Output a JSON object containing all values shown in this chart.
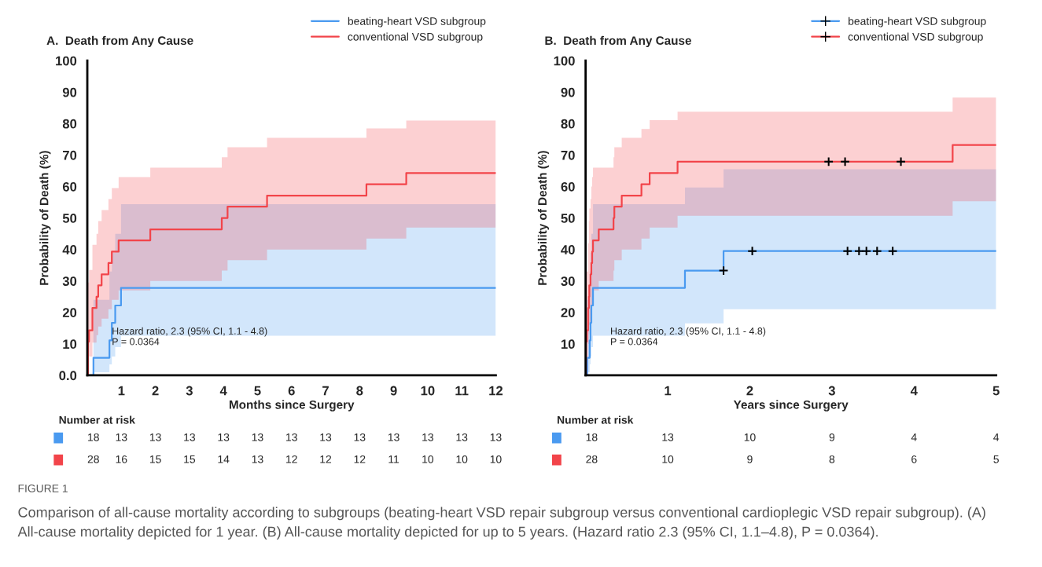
{
  "chart_data": [
    {
      "type": "step",
      "title": "A.  Death from Any Cause",
      "xlabel": "Months since Surgery",
      "ylabel": "Probability of Death (%)",
      "xlim": [
        0,
        12
      ],
      "ylim": [
        0,
        100
      ],
      "xticks": [
        {
          "value": 0,
          "label": null
        },
        1,
        2,
        3,
        4,
        5,
        6,
        7,
        8,
        9,
        10,
        11,
        12
      ],
      "yticks": [
        {
          "value": 0,
          "label": "0.0"
        },
        10,
        20,
        30,
        40,
        50,
        60,
        70,
        80,
        90,
        100
      ],
      "legend": "top right",
      "grid": false,
      "series": [
        {
          "name": "beating-heart VSD subgroup",
          "color": "#4a9af0",
          "x": [
            0,
            0.18,
            0.65,
            0.72,
            0.82,
            0.99,
            12
          ],
          "values": [
            0,
            5.6,
            11.1,
            16.7,
            22.2,
            27.8,
            27.8
          ],
          "lower": [
            0,
            1,
            3.5,
            6,
            9,
            12.6,
            12.6
          ],
          "upper": [
            0,
            24,
            33,
            39,
            45,
            54.4,
            54.4
          ]
        },
        {
          "name": "conventional VSD subgroup",
          "color": "#f2444a",
          "x": [
            0,
            0.02,
            0.05,
            0.15,
            0.27,
            0.32,
            0.42,
            0.62,
            0.72,
            0.92,
            1.85,
            3.95,
            4.12,
            5.28,
            8.2,
            9.37,
            12
          ],
          "values": [
            0,
            10.7,
            14.3,
            21.4,
            25,
            28.6,
            32.1,
            35.7,
            39.3,
            42.9,
            46.4,
            50,
            53.6,
            57.1,
            60.7,
            64.3,
            64.3
          ],
          "lower": [
            0,
            6,
            6,
            10.4,
            12.8,
            15.5,
            18,
            21,
            24,
            27,
            30,
            33.3,
            36.6,
            40,
            43.5,
            47,
            47
          ],
          "upper": [
            0,
            29.5,
            33.5,
            41.5,
            45,
            49,
            52.5,
            56,
            59.5,
            63,
            66,
            69.3,
            72.5,
            75.5,
            78.5,
            81,
            81
          ]
        }
      ],
      "annotations": [
        "Hazard ratio, 2.3 (95% CI, 1.1 - 4.8)",
        "P = 0.0364",
        "Number at risk",
        "18",
        "13",
        "13",
        "13",
        "13",
        "13",
        "13",
        "13",
        "13",
        "13",
        "13",
        "13",
        "13",
        "28",
        "16",
        "15",
        "15",
        "14",
        "13",
        "12",
        "12",
        "12",
        "11",
        "10",
        "10",
        "10"
      ]
    },
    {
      "type": "step",
      "title": "B.  Death from Any Cause",
      "xlabel": "Years since Surgery",
      "ylabel": "Probability of Death (%)",
      "xlim": [
        0,
        5
      ],
      "ylim": [
        0,
        100
      ],
      "xticks": [
        {
          "value": 0,
          "label": null
        },
        1,
        2,
        3,
        4,
        5
      ],
      "yticks": [
        {
          "value": 0,
          "label": null
        },
        10,
        20,
        30,
        40,
        50,
        60,
        70,
        80,
        90,
        100
      ],
      "legend": "top right",
      "grid": false,
      "series": [
        {
          "name": "beating-heart VSD subgroup",
          "color": "#4a9af0",
          "x": [
            0,
            0.02,
            0.05,
            0.06,
            0.07,
            0.09,
            1.21,
            1.68,
            5
          ],
          "values": [
            0,
            5.6,
            11.1,
            16.7,
            22.2,
            27.8,
            33.3,
            39.5,
            39.5
          ],
          "lower": [
            0,
            1,
            3.5,
            6,
            9,
            12.6,
            16.5,
            21,
            21
          ],
          "upper": [
            0,
            24,
            33,
            39,
            45,
            54.4,
            59.7,
            65.5,
            65.5
          ]
        },
        {
          "name": "conventional VSD subgroup",
          "color": "#f2444a",
          "x": [
            0,
            0.005,
            0.015,
            0.03,
            0.04,
            0.045,
            0.06,
            0.07,
            0.08,
            0.09,
            0.16,
            0.34,
            0.35,
            0.44,
            0.68,
            0.78,
            1.12,
            4.47,
            5
          ],
          "values": [
            0,
            10.7,
            14.3,
            21.4,
            25,
            28.6,
            32.1,
            35.7,
            39.3,
            42.9,
            46.4,
            50,
            53.6,
            57.1,
            60.7,
            64.3,
            67.9,
            73.2,
            73.2
          ],
          "lower": [
            0,
            5,
            5,
            10,
            13,
            16,
            18,
            21,
            24,
            27,
            30,
            33.3,
            36.6,
            40,
            43.5,
            47,
            50.7,
            55.3,
            55.3
          ],
          "upper": [
            0,
            33,
            33,
            42,
            49,
            53,
            56,
            60,
            63,
            66,
            66,
            69.3,
            72.5,
            75.5,
            78.3,
            81.1,
            83.8,
            88.3,
            88.3
          ]
        },
        {
          "type": "scatter",
          "marker": "cross",
          "color": "#000000",
          "x": [
            1.68,
            2.03,
            3.19,
            3.33,
            3.42,
            3.55,
            3.74
          ],
          "values": [
            33.3,
            39.5,
            39.5,
            39.5,
            39.5,
            39.5,
            39.5
          ]
        },
        {
          "type": "scatter",
          "marker": "cross",
          "color": "#000000",
          "x": [
            2.96,
            3.16,
            3.84
          ],
          "values": [
            67.9,
            67.9,
            67.9
          ]
        }
      ],
      "annotations": [
        "Hazard ratio, 2.3 (95% CI, 1.1 - 4.8)",
        "P = 0.0364",
        "Number at risk",
        "18",
        "13",
        "10",
        "9",
        "4",
        "4",
        "28",
        "10",
        "9",
        "8",
        "6",
        "5",
        "FIGURE 1",
        "Comparison of all-cause mortality according to subgroups (beating-heart VSD repair subgroup versus conventional cardioplegic VSD repair subgroup). (A) All-cause mortality depicted for 1 year. (B) All-cause mortality depicted for up to 5 years. (Hazard ratio 2.3 (95% CI, 1.1–4.8), P = 0.0364)."
      ]
    }
  ]
}
